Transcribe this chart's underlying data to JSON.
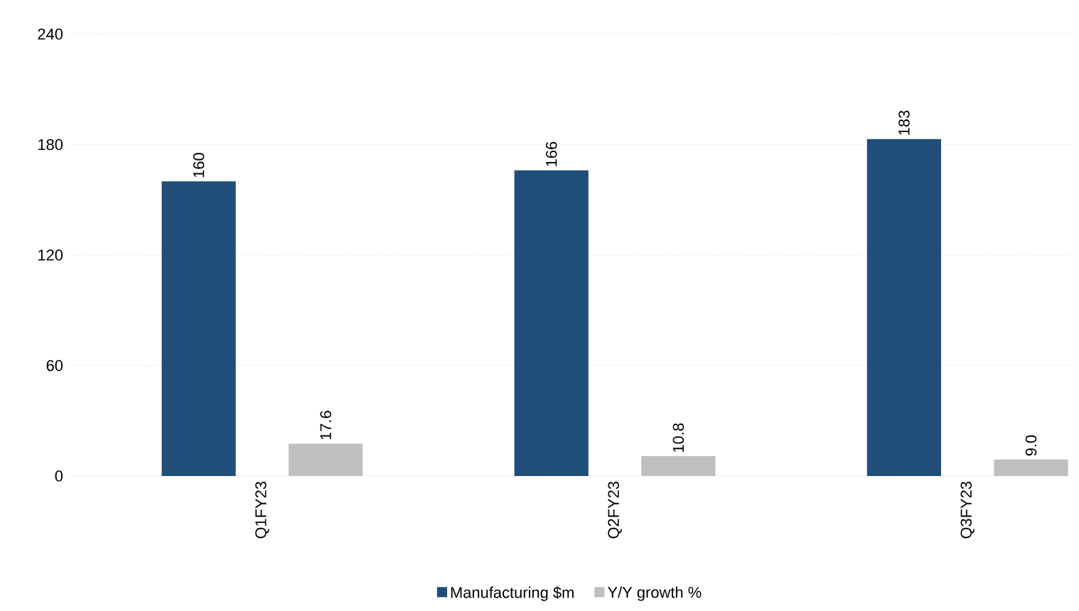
{
  "chart_data": {
    "type": "bar",
    "categories": [
      "Q1FY23",
      "Q2FY23",
      "Q3FY23"
    ],
    "series": [
      {
        "name": "Manufacturing $m",
        "color": "#1f4e79",
        "values": [
          160,
          166,
          183
        ],
        "value_labels": [
          "160",
          "166",
          "183"
        ]
      },
      {
        "name": "Y/Y growth %",
        "color": "#bfbfbf",
        "values": [
          17.6,
          10.8,
          9.0
        ],
        "value_labels": [
          "17.6",
          "10.8",
          "9.0"
        ]
      }
    ],
    "ylim": [
      0,
      240
    ],
    "yticks": [
      0,
      60,
      120,
      180,
      240
    ],
    "grid": "y",
    "legend": "bottom"
  }
}
